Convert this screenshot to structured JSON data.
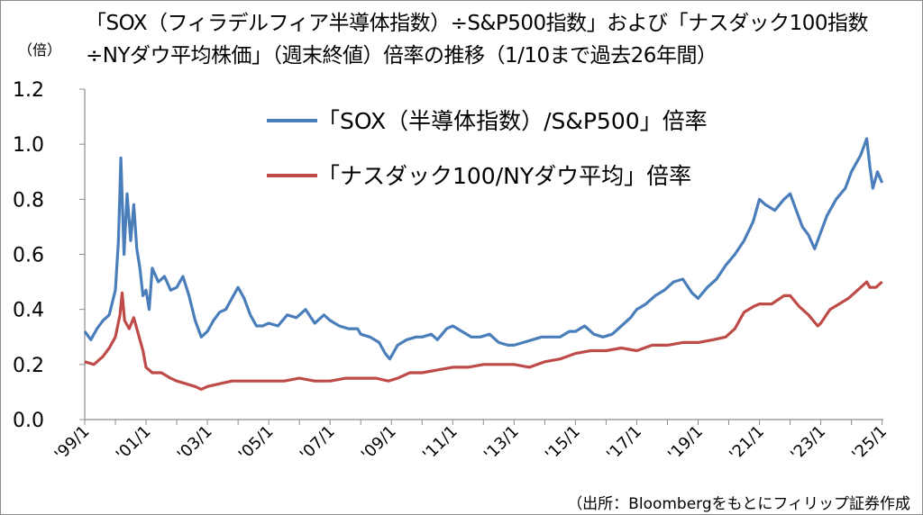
{
  "title_line1": "「SOX（フィラデルフィア半導体指数）÷S&P500指数」および「ナスダック100指数",
  "title_line2": "÷NYダウ平均株価」（週末終値）倍率の推移（1/10まで過去26年間）",
  "unit_label": "（倍）",
  "source": "（出所：Bloombergをもとにフィリップ証券作成",
  "colors": {
    "series1": "#4a7ebb",
    "series2": "#be4b48",
    "axis": "#8c8c8c"
  },
  "chart_data": {
    "type": "line",
    "ylim": [
      0,
      1.2
    ],
    "y_ticks": [
      "0.0",
      "0.2",
      "0.4",
      "0.6",
      "0.8",
      "1.0",
      "1.2"
    ],
    "x_ticks": [
      "'99/1",
      "'01/1",
      "'03/1",
      "'05/1",
      "'07/1",
      "'09/1",
      "'11/1",
      "'13/1",
      "'15/1",
      "'17/1",
      "'19/1",
      "'21/1",
      "'23/1",
      "'25/1"
    ],
    "x_range": [
      1999.0,
      2025.04
    ],
    "grid": false,
    "legend_position": "top-center",
    "series": [
      {
        "name": "「SOX（半導体指数）/S&P500」倍率",
        "color": "#4a7ebb",
        "points": [
          [
            1999.0,
            0.32
          ],
          [
            1999.2,
            0.29
          ],
          [
            1999.4,
            0.33
          ],
          [
            1999.6,
            0.36
          ],
          [
            1999.8,
            0.38
          ],
          [
            2000.0,
            0.47
          ],
          [
            2000.1,
            0.65
          ],
          [
            2000.18,
            0.95
          ],
          [
            2000.28,
            0.6
          ],
          [
            2000.38,
            0.82
          ],
          [
            2000.5,
            0.65
          ],
          [
            2000.6,
            0.78
          ],
          [
            2000.7,
            0.62
          ],
          [
            2000.8,
            0.55
          ],
          [
            2000.9,
            0.45
          ],
          [
            2001.0,
            0.47
          ],
          [
            2001.1,
            0.4
          ],
          [
            2001.2,
            0.55
          ],
          [
            2001.4,
            0.5
          ],
          [
            2001.6,
            0.52
          ],
          [
            2001.8,
            0.47
          ],
          [
            2002.0,
            0.48
          ],
          [
            2002.2,
            0.52
          ],
          [
            2002.4,
            0.45
          ],
          [
            2002.6,
            0.36
          ],
          [
            2002.8,
            0.3
          ],
          [
            2003.0,
            0.32
          ],
          [
            2003.2,
            0.36
          ],
          [
            2003.4,
            0.39
          ],
          [
            2003.6,
            0.4
          ],
          [
            2003.8,
            0.44
          ],
          [
            2004.0,
            0.48
          ],
          [
            2004.2,
            0.44
          ],
          [
            2004.4,
            0.38
          ],
          [
            2004.6,
            0.34
          ],
          [
            2004.8,
            0.34
          ],
          [
            2005.0,
            0.35
          ],
          [
            2005.3,
            0.34
          ],
          [
            2005.6,
            0.38
          ],
          [
            2005.9,
            0.37
          ],
          [
            2006.2,
            0.4
          ],
          [
            2006.5,
            0.35
          ],
          [
            2006.8,
            0.38
          ],
          [
            2007.0,
            0.36
          ],
          [
            2007.3,
            0.34
          ],
          [
            2007.6,
            0.33
          ],
          [
            2007.9,
            0.33
          ],
          [
            2008.0,
            0.31
          ],
          [
            2008.3,
            0.3
          ],
          [
            2008.6,
            0.28
          ],
          [
            2008.8,
            0.24
          ],
          [
            2008.95,
            0.22
          ],
          [
            2009.2,
            0.27
          ],
          [
            2009.5,
            0.29
          ],
          [
            2009.8,
            0.3
          ],
          [
            2010.0,
            0.3
          ],
          [
            2010.3,
            0.31
          ],
          [
            2010.5,
            0.29
          ],
          [
            2010.8,
            0.33
          ],
          [
            2011.0,
            0.34
          ],
          [
            2011.3,
            0.32
          ],
          [
            2011.6,
            0.3
          ],
          [
            2011.9,
            0.3
          ],
          [
            2012.2,
            0.31
          ],
          [
            2012.5,
            0.28
          ],
          [
            2012.8,
            0.27
          ],
          [
            2013.0,
            0.27
          ],
          [
            2013.3,
            0.28
          ],
          [
            2013.6,
            0.29
          ],
          [
            2013.9,
            0.3
          ],
          [
            2014.2,
            0.3
          ],
          [
            2014.5,
            0.3
          ],
          [
            2014.8,
            0.32
          ],
          [
            2015.0,
            0.32
          ],
          [
            2015.3,
            0.34
          ],
          [
            2015.6,
            0.31
          ],
          [
            2015.9,
            0.3
          ],
          [
            2016.2,
            0.31
          ],
          [
            2016.5,
            0.34
          ],
          [
            2016.8,
            0.37
          ],
          [
            2017.0,
            0.4
          ],
          [
            2017.3,
            0.42
          ],
          [
            2017.6,
            0.45
          ],
          [
            2017.9,
            0.47
          ],
          [
            2018.2,
            0.5
          ],
          [
            2018.5,
            0.51
          ],
          [
            2018.8,
            0.46
          ],
          [
            2019.0,
            0.44
          ],
          [
            2019.3,
            0.48
          ],
          [
            2019.6,
            0.51
          ],
          [
            2019.9,
            0.56
          ],
          [
            2020.2,
            0.6
          ],
          [
            2020.5,
            0.65
          ],
          [
            2020.8,
            0.72
          ],
          [
            2021.0,
            0.8
          ],
          [
            2021.2,
            0.78
          ],
          [
            2021.5,
            0.76
          ],
          [
            2021.8,
            0.8
          ],
          [
            2022.0,
            0.82
          ],
          [
            2022.2,
            0.76
          ],
          [
            2022.4,
            0.7
          ],
          [
            2022.6,
            0.67
          ],
          [
            2022.8,
            0.62
          ],
          [
            2023.0,
            0.68
          ],
          [
            2023.2,
            0.74
          ],
          [
            2023.5,
            0.8
          ],
          [
            2023.8,
            0.84
          ],
          [
            2024.0,
            0.9
          ],
          [
            2024.3,
            0.96
          ],
          [
            2024.5,
            1.02
          ],
          [
            2024.6,
            0.92
          ],
          [
            2024.7,
            0.84
          ],
          [
            2024.85,
            0.9
          ],
          [
            2025.0,
            0.86
          ]
        ]
      },
      {
        "name": "「ナスダック100/NYダウ平均」倍率",
        "color": "#be4b48",
        "points": [
          [
            1999.0,
            0.21
          ],
          [
            1999.3,
            0.2
          ],
          [
            1999.6,
            0.23
          ],
          [
            1999.8,
            0.26
          ],
          [
            2000.0,
            0.3
          ],
          [
            2000.15,
            0.38
          ],
          [
            2000.22,
            0.46
          ],
          [
            2000.3,
            0.36
          ],
          [
            2000.45,
            0.33
          ],
          [
            2000.6,
            0.37
          ],
          [
            2000.7,
            0.33
          ],
          [
            2000.9,
            0.25
          ],
          [
            2001.0,
            0.19
          ],
          [
            2001.2,
            0.17
          ],
          [
            2001.5,
            0.17
          ],
          [
            2001.8,
            0.15
          ],
          [
            2002.0,
            0.14
          ],
          [
            2002.3,
            0.13
          ],
          [
            2002.6,
            0.12
          ],
          [
            2002.8,
            0.11
          ],
          [
            2003.0,
            0.12
          ],
          [
            2003.4,
            0.13
          ],
          [
            2003.8,
            0.14
          ],
          [
            2004.2,
            0.14
          ],
          [
            2004.6,
            0.14
          ],
          [
            2005.0,
            0.14
          ],
          [
            2005.5,
            0.14
          ],
          [
            2006.0,
            0.15
          ],
          [
            2006.5,
            0.14
          ],
          [
            2007.0,
            0.14
          ],
          [
            2007.5,
            0.15
          ],
          [
            2008.0,
            0.15
          ],
          [
            2008.5,
            0.15
          ],
          [
            2008.9,
            0.14
          ],
          [
            2009.2,
            0.15
          ],
          [
            2009.6,
            0.17
          ],
          [
            2010.0,
            0.17
          ],
          [
            2010.5,
            0.18
          ],
          [
            2011.0,
            0.19
          ],
          [
            2011.5,
            0.19
          ],
          [
            2012.0,
            0.2
          ],
          [
            2012.5,
            0.2
          ],
          [
            2013.0,
            0.2
          ],
          [
            2013.5,
            0.19
          ],
          [
            2014.0,
            0.21
          ],
          [
            2014.5,
            0.22
          ],
          [
            2015.0,
            0.24
          ],
          [
            2015.5,
            0.25
          ],
          [
            2016.0,
            0.25
          ],
          [
            2016.5,
            0.26
          ],
          [
            2017.0,
            0.25
          ],
          [
            2017.5,
            0.27
          ],
          [
            2018.0,
            0.27
          ],
          [
            2018.5,
            0.28
          ],
          [
            2019.0,
            0.28
          ],
          [
            2019.5,
            0.29
          ],
          [
            2019.9,
            0.3
          ],
          [
            2020.2,
            0.33
          ],
          [
            2020.5,
            0.39
          ],
          [
            2020.8,
            0.41
          ],
          [
            2021.0,
            0.42
          ],
          [
            2021.4,
            0.42
          ],
          [
            2021.8,
            0.45
          ],
          [
            2022.0,
            0.45
          ],
          [
            2022.3,
            0.41
          ],
          [
            2022.6,
            0.38
          ],
          [
            2022.9,
            0.34
          ],
          [
            2023.0,
            0.35
          ],
          [
            2023.3,
            0.4
          ],
          [
            2023.6,
            0.42
          ],
          [
            2023.9,
            0.44
          ],
          [
            2024.2,
            0.47
          ],
          [
            2024.5,
            0.5
          ],
          [
            2024.6,
            0.48
          ],
          [
            2024.8,
            0.48
          ],
          [
            2025.0,
            0.5
          ]
        ]
      }
    ]
  }
}
